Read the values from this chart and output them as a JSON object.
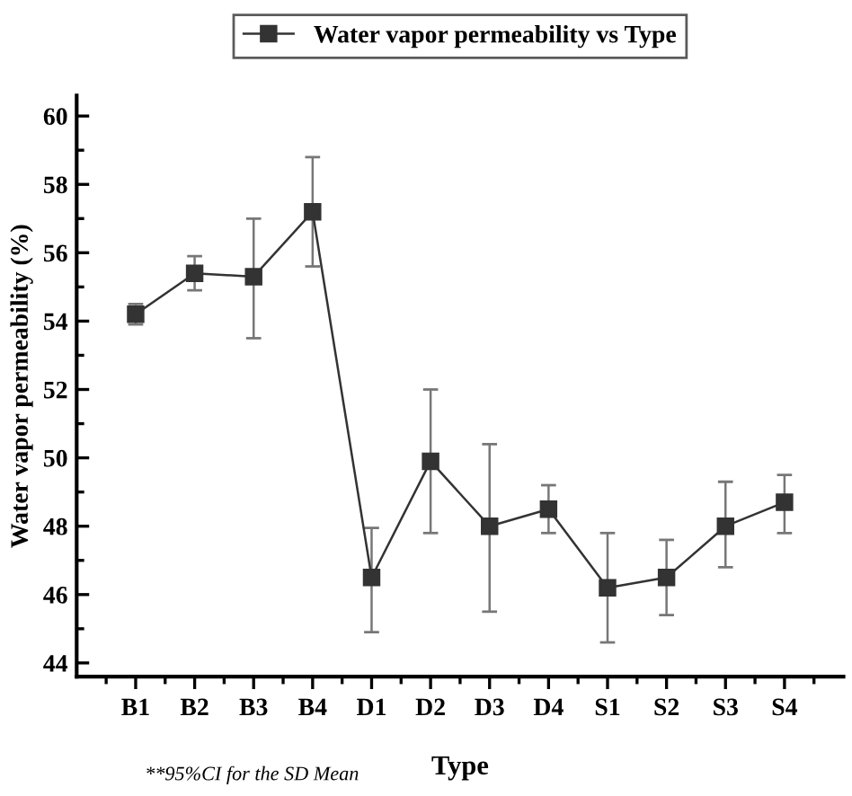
{
  "chart_data": {
    "type": "line",
    "xlabel": "Type",
    "ylabel": "Water vapor permeability (%)",
    "categories": [
      "B1",
      "B2",
      "B3",
      "B4",
      "D1",
      "D2",
      "D3",
      "D4",
      "S1",
      "S2",
      "S3",
      "S4"
    ],
    "series": [
      {
        "name": "Water vapor permeability vs Type",
        "color": "#333333",
        "values": [
          54.2,
          55.4,
          55.3,
          57.2,
          46.5,
          49.9,
          48.0,
          48.5,
          46.2,
          46.5,
          48.0,
          48.7
        ],
        "errors": [
          [
            53.9,
            54.5
          ],
          [
            54.9,
            55.9
          ],
          [
            53.5,
            57.0
          ],
          [
            55.6,
            58.8
          ],
          [
            44.9,
            47.95
          ],
          [
            47.8,
            52.0
          ],
          [
            45.5,
            50.4
          ],
          [
            47.8,
            49.2
          ],
          [
            44.6,
            47.8
          ],
          [
            45.4,
            47.6
          ],
          [
            46.8,
            49.3
          ],
          [
            47.8,
            49.5
          ]
        ]
      }
    ],
    "ylim": [
      43.6,
      60.6
    ],
    "yticks": [
      44,
      46,
      48,
      50,
      52,
      54,
      56,
      58,
      60
    ],
    "marker": "square",
    "line_style": "solid",
    "legend": "top",
    "grid": false,
    "annotations": [
      "**95%CI for the SD Mean"
    ]
  }
}
